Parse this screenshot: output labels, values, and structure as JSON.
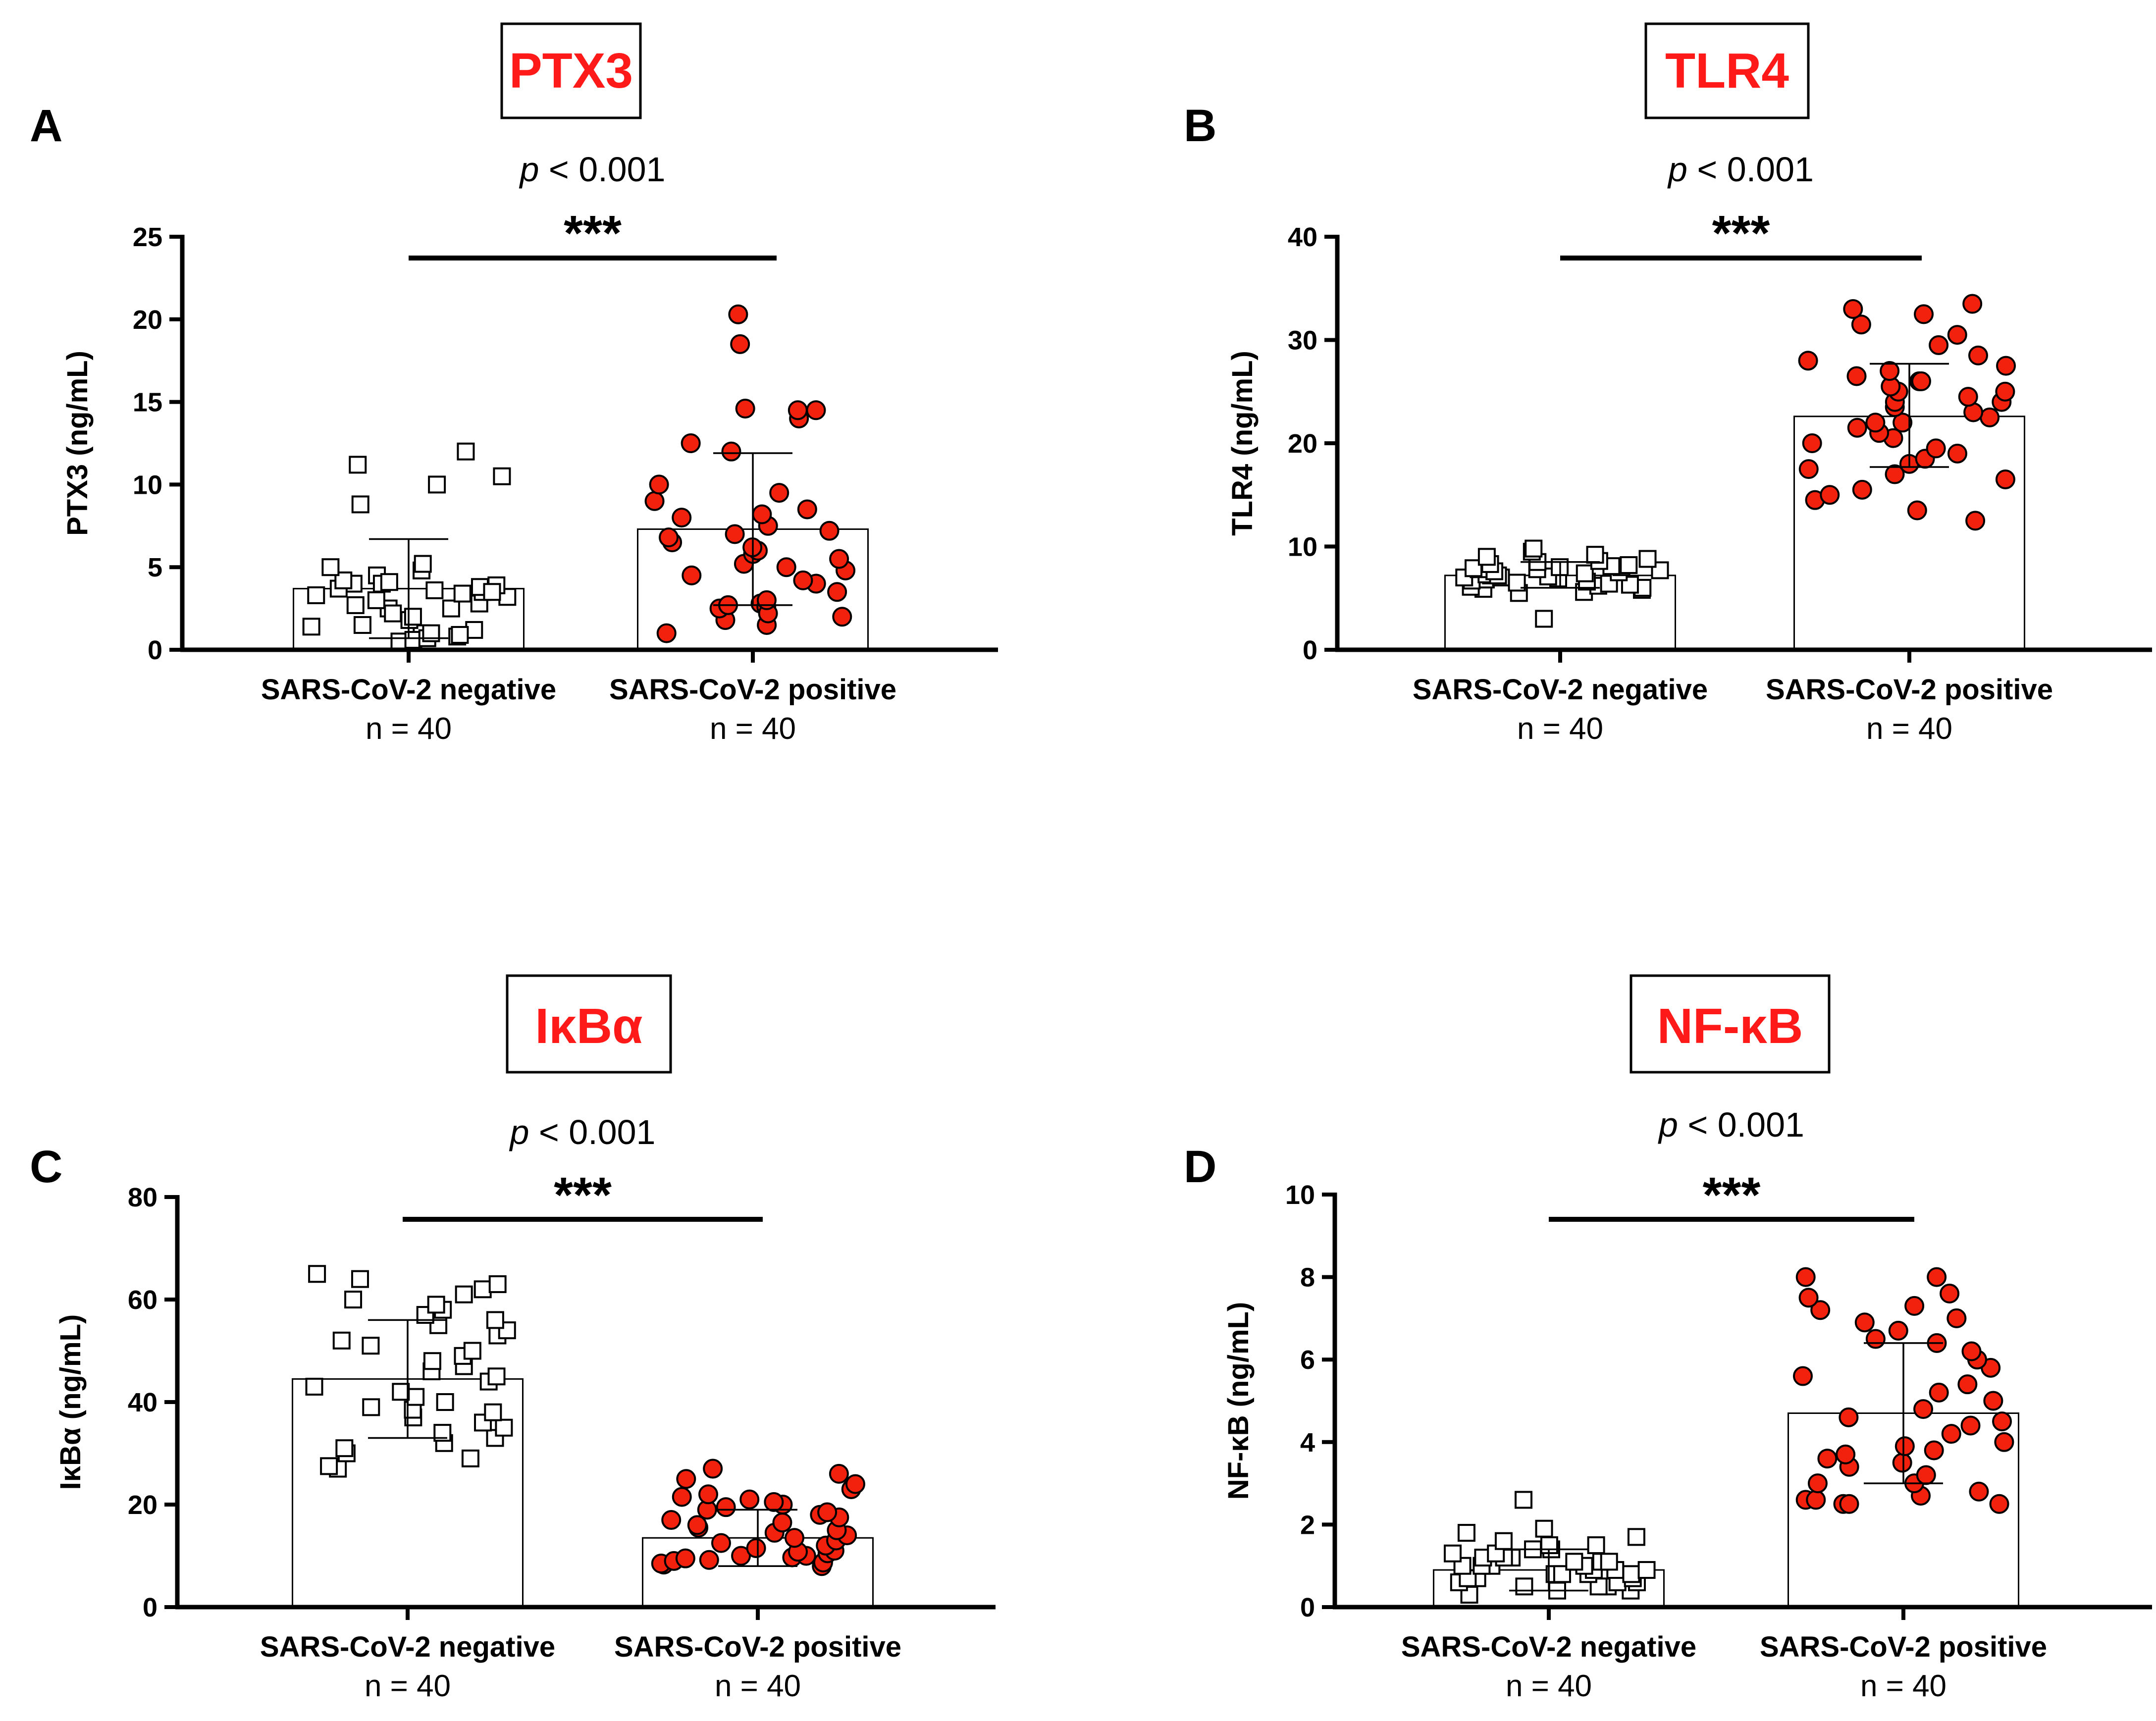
{
  "colors": {
    "title": "#ff1a1a",
    "positive_point": "#f2210e",
    "negative_point": "#ffffff",
    "axis": "#000000"
  },
  "chart_data": [
    {
      "type": "bar",
      "panel": "A",
      "title": "PTX3",
      "p_label": "p",
      "p_rest": " < 0.001",
      "significance": "***",
      "ylabel": "PTX3 (ng/mL)",
      "ylim": [
        0,
        25
      ],
      "yticks": [
        0,
        5,
        10,
        15,
        20,
        25
      ],
      "categories": [
        "SARS-CoV-2 negative",
        "SARS-CoV-2 positive"
      ],
      "n_labels": [
        "n = 40",
        "n = 40"
      ],
      "means": [
        3.7,
        7.3
      ],
      "sd_upper": [
        6.7,
        11.9
      ],
      "sd_lower": [
        0.7,
        2.7
      ],
      "points": [
        [
          0.8,
          1.0,
          0.5,
          1.5,
          1.2,
          0.9,
          1.8,
          0.6,
          2.0,
          1.4,
          0.7,
          1.0,
          2.5,
          2.8,
          3.0,
          2.2,
          2.7,
          3.2,
          2.5,
          3.5,
          3.8,
          3.3,
          3.6,
          3.9,
          4.0,
          3.4,
          3.7,
          3.5,
          4.2,
          4.5,
          4.8,
          4.0,
          4.1,
          5.2,
          5.0,
          10.0,
          10.5,
          11.2,
          8.8,
          12.0
        ],
        [
          1.0,
          1.8,
          2.5,
          2.0,
          2.8,
          1.5,
          2.6,
          2.2,
          3.0,
          2.7,
          3.5,
          4.0,
          4.5,
          4.2,
          5.0,
          4.8,
          5.2,
          5.5,
          5.8,
          6.0,
          6.2,
          6.5,
          6.8,
          7.0,
          7.2,
          7.5,
          8.0,
          8.2,
          8.5,
          9.0,
          9.5,
          10.0,
          12.0,
          12.5,
          14.0,
          14.5,
          14.5,
          14.6,
          18.5,
          20.3
        ]
      ]
    },
    {
      "type": "bar",
      "panel": "B",
      "title": "TLR4",
      "p_label": "p",
      "p_rest": " < 0.001",
      "significance": "***",
      "ylabel": "TLR4 (ng/mL)",
      "ylim": [
        0,
        40
      ],
      "yticks": [
        0,
        10,
        20,
        30,
        40
      ],
      "categories": [
        "SARS-CoV-2 negative",
        "SARS-CoV-2 positive"
      ],
      "n_labels": [
        "n = 40",
        "n = 40"
      ],
      "means": [
        7.2,
        22.6
      ],
      "sd_upper": [
        8.5,
        27.7
      ],
      "sd_lower": [
        6.0,
        17.7
      ],
      "points": [
        [
          3.0,
          5.5,
          5.8,
          5.6,
          6.0,
          6.2,
          5.9,
          6.3,
          6.1,
          6.5,
          6.4,
          6.6,
          6.8,
          6.7,
          7.0,
          6.9,
          7.1,
          7.2,
          7.0,
          7.3,
          7.4,
          7.5,
          7.2,
          7.6,
          7.8,
          7.7,
          7.9,
          8.0,
          7.8,
          8.1,
          8.2,
          8.0,
          8.3,
          8.5,
          8.6,
          8.8,
          9.0,
          9.2,
          9.5,
          9.8
        ],
        [
          12.5,
          13.5,
          14.5,
          15.0,
          15.5,
          16.5,
          17.0,
          17.5,
          18.0,
          18.5,
          19.0,
          19.5,
          20.0,
          20.5,
          21.0,
          21.5,
          22.0,
          22.0,
          22.5,
          23.0,
          23.5,
          24.0,
          24.0,
          24.5,
          25.0,
          25.0,
          25.5,
          26.0,
          26.0,
          26.5,
          27.0,
          27.5,
          28.0,
          28.5,
          29.5,
          30.5,
          31.5,
          32.5,
          33.0,
          33.5
        ]
      ]
    },
    {
      "type": "bar",
      "panel": "C",
      "title": "IκBα",
      "p_label": "p",
      "p_rest": " < 0.001",
      "significance": "***",
      "ylabel": "IκBα (ng/mL)",
      "ylim": [
        0,
        80
      ],
      "yticks": [
        0,
        20,
        40,
        60,
        80
      ],
      "categories": [
        "SARS-CoV-2 negative",
        "SARS-CoV-2 positive"
      ],
      "n_labels": [
        "n = 40",
        "n = 40"
      ],
      "means": [
        44.5,
        13.5
      ],
      "sd_upper": [
        56.0,
        19.0
      ],
      "sd_lower": [
        33.0,
        8.0
      ],
      "points": [
        [
          27.0,
          27.5,
          29.0,
          30.0,
          31.0,
          32.0,
          33.0,
          34.0,
          35.0,
          36.0,
          37.0,
          38.0,
          38.5,
          39.0,
          40.0,
          41.0,
          42.0,
          43.0,
          44.0,
          45.0,
          46.0,
          47.0,
          48.0,
          49.0,
          50.0,
          51.0,
          52.0,
          53.0,
          54.0,
          55.0,
          56.0,
          57.0,
          58.0,
          59.0,
          60.0,
          61.0,
          62.0,
          63.0,
          64.0,
          65.0
        ],
        [
          8.0,
          8.3,
          8.5,
          8.7,
          9.0,
          9.2,
          9.5,
          9.7,
          10.0,
          10.0,
          10.5,
          10.8,
          11.0,
          11.5,
          12.0,
          12.5,
          13.0,
          13.5,
          14.0,
          14.5,
          15.0,
          15.5,
          16.0,
          16.5,
          17.0,
          17.5,
          18.0,
          18.5,
          19.0,
          19.5,
          20.0,
          20.5,
          21.0,
          21.5,
          22.0,
          23.0,
          24.0,
          25.0,
          26.0,
          27.0
        ]
      ]
    },
    {
      "type": "bar",
      "panel": "D",
      "title": "NF-κB",
      "p_label": "p",
      "p_rest": " < 0.001",
      "significance": "***",
      "ylabel": "NF-κB (ng/mL)",
      "ylim": [
        0,
        10
      ],
      "yticks": [
        0,
        2,
        4,
        6,
        8,
        10
      ],
      "categories": [
        "SARS-CoV-2 negative",
        "SARS-CoV-2 positive"
      ],
      "n_labels": [
        "n = 40",
        "n = 40"
      ],
      "means": [
        0.9,
        4.7
      ],
      "sd_upper": [
        1.4,
        6.4
      ],
      "sd_lower": [
        0.4,
        3.0
      ],
      "points": [
        [
          0.3,
          0.4,
          0.4,
          0.5,
          0.5,
          0.5,
          0.6,
          0.6,
          0.6,
          0.7,
          0.7,
          0.7,
          0.8,
          0.8,
          0.8,
          0.8,
          0.9,
          0.9,
          0.9,
          1.0,
          1.0,
          1.0,
          1.0,
          1.1,
          1.1,
          1.1,
          1.2,
          1.2,
          1.2,
          1.3,
          1.3,
          1.4,
          1.4,
          1.5,
          1.5,
          1.6,
          1.7,
          1.8,
          1.9,
          2.6
        ],
        [
          2.5,
          2.5,
          2.5,
          2.6,
          2.6,
          2.7,
          2.8,
          3.0,
          3.0,
          3.2,
          3.4,
          3.5,
          3.6,
          3.7,
          3.8,
          3.9,
          4.0,
          4.2,
          4.4,
          4.5,
          4.6,
          4.8,
          5.0,
          5.2,
          5.4,
          5.6,
          5.8,
          6.0,
          6.2,
          6.4,
          6.5,
          6.7,
          6.9,
          7.0,
          7.2,
          7.3,
          7.5,
          7.6,
          8.0,
          8.0
        ]
      ]
    }
  ]
}
